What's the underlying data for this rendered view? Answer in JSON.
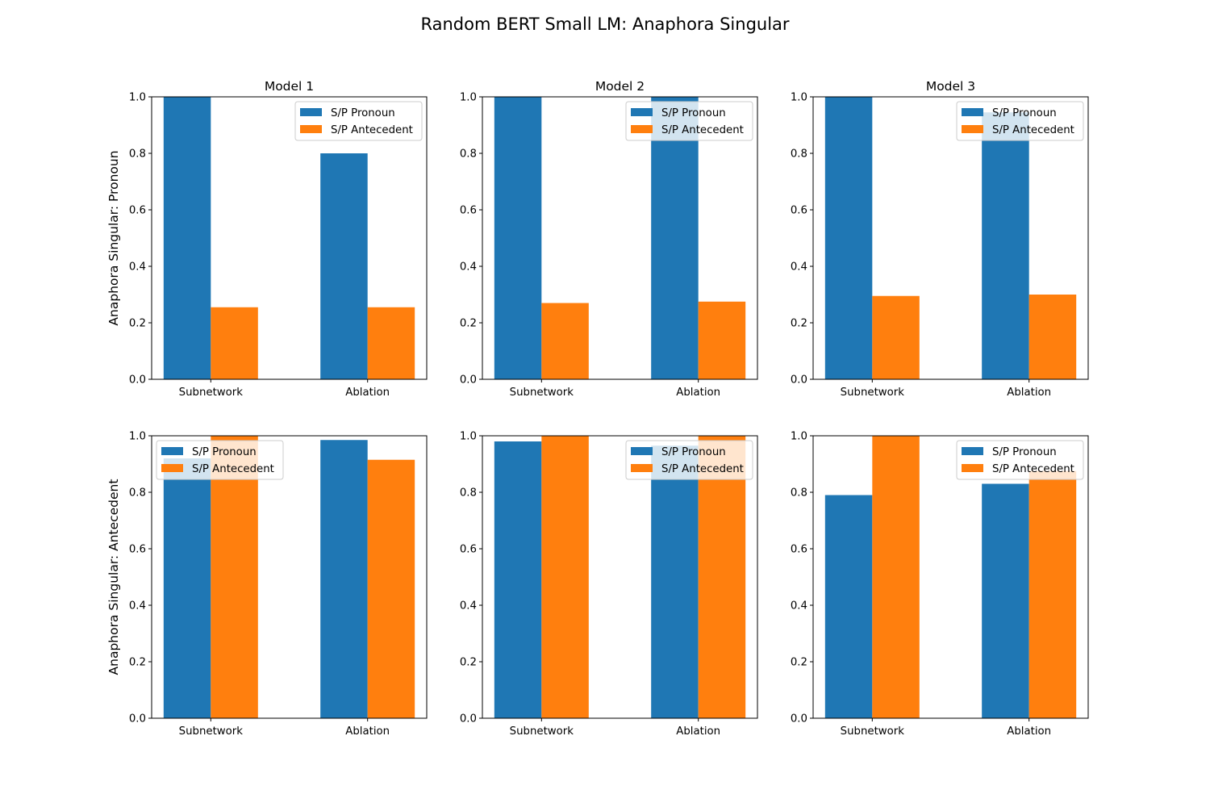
{
  "figure": {
    "title": "Random BERT Small LM: Anaphora Singular"
  },
  "colors": {
    "pronoun": "#1f77b4",
    "antecedent": "#ff7f0e"
  },
  "chart_data": [
    {
      "type": "bar",
      "title": "Model 1",
      "ylabel": "Anaphora Singular: Pronoun",
      "categories": [
        "Subnetwork",
        "Ablation"
      ],
      "ylim": [
        0,
        1.0
      ],
      "yticks": [
        "0.0",
        "0.2",
        "0.4",
        "0.6",
        "0.8",
        "1.0"
      ],
      "legend_position": "upper right",
      "series": [
        {
          "name": "S/P Pronoun",
          "values": [
            1.0,
            0.8
          ]
        },
        {
          "name": "S/P Antecedent",
          "values": [
            0.255,
            0.255
          ]
        }
      ]
    },
    {
      "type": "bar",
      "title": "Model 2",
      "ylabel": "",
      "categories": [
        "Subnetwork",
        "Ablation"
      ],
      "ylim": [
        0,
        1.0
      ],
      "yticks": [
        "0.0",
        "0.2",
        "0.4",
        "0.6",
        "0.8",
        "1.0"
      ],
      "legend_position": "upper right",
      "series": [
        {
          "name": "S/P Pronoun",
          "values": [
            1.0,
            1.0
          ]
        },
        {
          "name": "S/P Antecedent",
          "values": [
            0.27,
            0.275
          ]
        }
      ]
    },
    {
      "type": "bar",
      "title": "Model 3",
      "ylabel": "",
      "categories": [
        "Subnetwork",
        "Ablation"
      ],
      "ylim": [
        0,
        1.0
      ],
      "yticks": [
        "0.0",
        "0.2",
        "0.4",
        "0.6",
        "0.8",
        "1.0"
      ],
      "legend_position": "upper right",
      "series": [
        {
          "name": "S/P Pronoun",
          "values": [
            1.0,
            0.945
          ]
        },
        {
          "name": "S/P Antecedent",
          "values": [
            0.295,
            0.3
          ]
        }
      ]
    },
    {
      "type": "bar",
      "title": "",
      "ylabel": "Anaphora Singular: Antecedent",
      "categories": [
        "Subnetwork",
        "Ablation"
      ],
      "ylim": [
        0,
        1.0
      ],
      "yticks": [
        "0.0",
        "0.2",
        "0.4",
        "0.6",
        "0.8",
        "1.0"
      ],
      "legend_position": "upper left",
      "series": [
        {
          "name": "S/P Pronoun",
          "values": [
            0.92,
            0.985
          ]
        },
        {
          "name": "S/P Antecedent",
          "values": [
            1.0,
            0.915
          ]
        }
      ]
    },
    {
      "type": "bar",
      "title": "",
      "ylabel": "",
      "categories": [
        "Subnetwork",
        "Ablation"
      ],
      "ylim": [
        0,
        1.0
      ],
      "yticks": [
        "0.0",
        "0.2",
        "0.4",
        "0.6",
        "0.8",
        "1.0"
      ],
      "legend_position": "upper right",
      "series": [
        {
          "name": "S/P Pronoun",
          "values": [
            0.98,
            0.965
          ]
        },
        {
          "name": "S/P Antecedent",
          "values": [
            1.0,
            1.0
          ]
        }
      ]
    },
    {
      "type": "bar",
      "title": "",
      "ylabel": "",
      "categories": [
        "Subnetwork",
        "Ablation"
      ],
      "ylim": [
        0,
        1.0
      ],
      "yticks": [
        "0.0",
        "0.2",
        "0.4",
        "0.6",
        "0.8",
        "1.0"
      ],
      "legend_position": "upper right",
      "series": [
        {
          "name": "S/P Pronoun",
          "values": [
            0.79,
            0.83
          ]
        },
        {
          "name": "S/P Antecedent",
          "values": [
            1.0,
            0.875
          ]
        }
      ]
    }
  ]
}
